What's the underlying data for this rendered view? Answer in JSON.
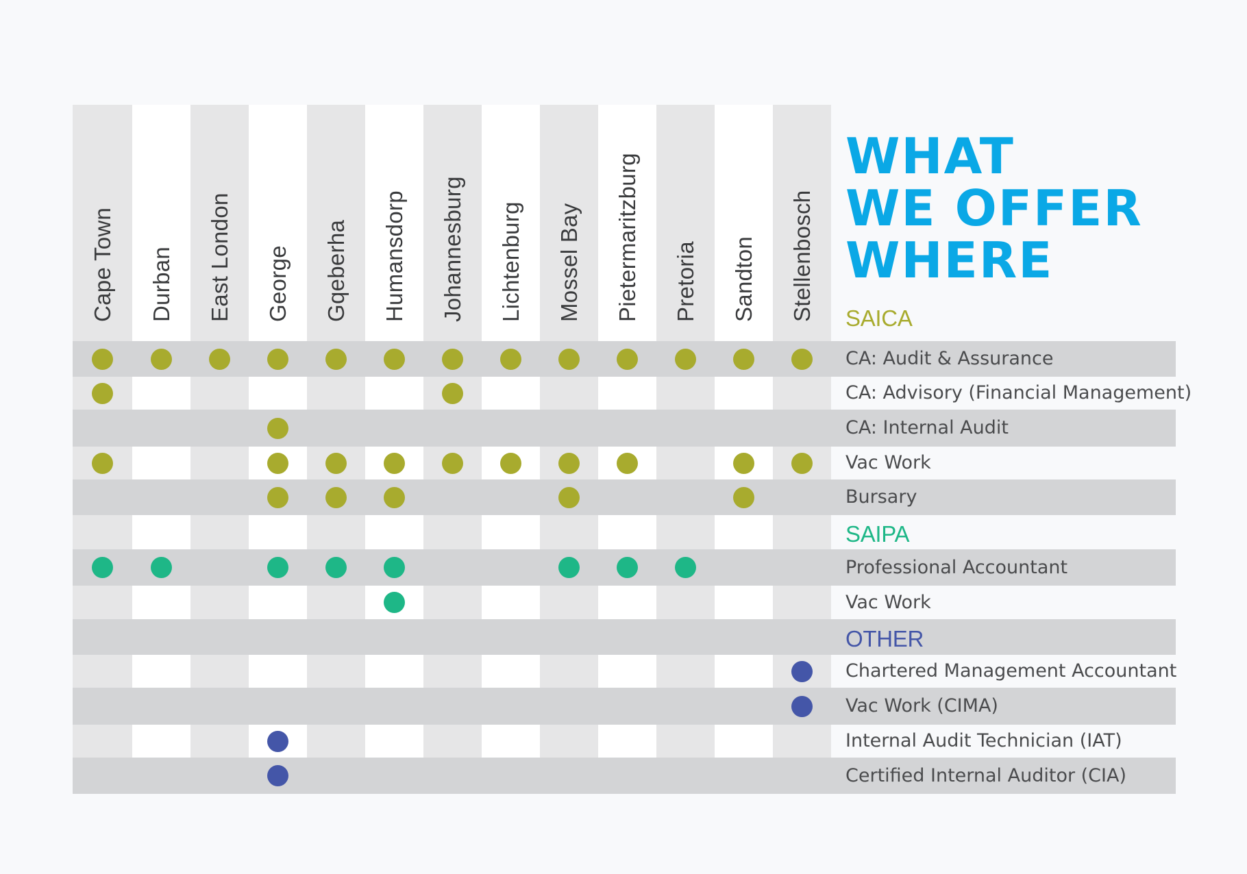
{
  "title": {
    "line1": "WHAT",
    "line2": "WE OFFER",
    "line3": "WHERE"
  },
  "colors": {
    "saica": "#a8ab2e",
    "saipa": "#1eb787",
    "other": "#4456a8",
    "title": "#0aa8e6"
  },
  "cities": [
    "Cape Town",
    "Durban",
    "East London",
    "George",
    "Gqeberha",
    "Humansdorp",
    "Johannesburg",
    "Lichtenburg",
    "Mossel Bay",
    "Pietermaritzburg",
    "Pretoria",
    "Sandton",
    "Stellenbosch"
  ],
  "rows": [
    {
      "kind": "header",
      "label": "SAICA",
      "group": "saica"
    },
    {
      "kind": "offer",
      "label": "CA: Audit & Assurance",
      "group": "saica",
      "cities": [
        "Cape Town",
        "Durban",
        "East London",
        "George",
        "Gqeberha",
        "Humansdorp",
        "Johannesburg",
        "Lichtenburg",
        "Mossel Bay",
        "Pietermaritzburg",
        "Pretoria",
        "Sandton",
        "Stellenbosch"
      ]
    },
    {
      "kind": "offer",
      "label": "CA: Advisory (Financial Management)",
      "group": "saica",
      "cities": [
        "Cape Town",
        "Johannesburg"
      ]
    },
    {
      "kind": "offer",
      "label": "CA: Internal Audit",
      "group": "saica",
      "cities": [
        "George"
      ]
    },
    {
      "kind": "offer",
      "label": "Vac Work",
      "group": "saica",
      "cities": [
        "Cape Town",
        "George",
        "Gqeberha",
        "Humansdorp",
        "Johannesburg",
        "Lichtenburg",
        "Mossel Bay",
        "Pietermaritzburg",
        "Sandton",
        "Stellenbosch"
      ]
    },
    {
      "kind": "offer",
      "label": "Bursary",
      "group": "saica",
      "cities": [
        "George",
        "Gqeberha",
        "Humansdorp",
        "Mossel Bay",
        "Sandton"
      ]
    },
    {
      "kind": "header",
      "label": "SAIPA",
      "group": "saipa"
    },
    {
      "kind": "offer",
      "label": "Professional Accountant",
      "group": "saipa",
      "cities": [
        "Cape Town",
        "Durban",
        "George",
        "Gqeberha",
        "Humansdorp",
        "Mossel Bay",
        "Pietermaritzburg",
        "Pretoria"
      ]
    },
    {
      "kind": "offer",
      "label": "Vac Work",
      "group": "saipa",
      "cities": [
        "Humansdorp"
      ]
    },
    {
      "kind": "header",
      "label": "OTHER",
      "group": "other"
    },
    {
      "kind": "offer",
      "label": "Chartered Management Accountant",
      "group": "other",
      "cities": [
        "Stellenbosch"
      ]
    },
    {
      "kind": "offer",
      "label": "Vac Work (CIMA)",
      "group": "other",
      "cities": [
        "Stellenbosch"
      ]
    },
    {
      "kind": "offer",
      "label": "Internal Audit Technician (IAT)",
      "group": "other",
      "cities": [
        "George"
      ]
    },
    {
      "kind": "offer",
      "label": "Certified Internal Auditor (CIA)",
      "group": "other",
      "cities": [
        "George"
      ]
    }
  ]
}
